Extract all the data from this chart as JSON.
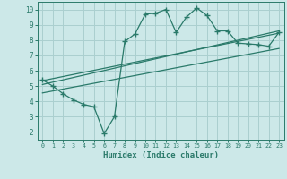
{
  "zigzag_x": [
    0,
    1,
    2,
    3,
    4,
    5,
    6,
    7,
    8,
    9,
    10,
    11,
    12,
    13,
    14,
    15,
    16,
    17,
    18,
    19,
    20,
    21,
    22,
    23
  ],
  "zigzag_y": [
    5.4,
    5.0,
    4.5,
    4.1,
    3.8,
    3.65,
    1.9,
    3.0,
    7.9,
    8.4,
    9.7,
    9.75,
    10.0,
    8.5,
    9.5,
    10.1,
    9.6,
    8.6,
    8.6,
    7.8,
    7.75,
    7.7,
    7.6,
    8.5
  ],
  "trend1_x": [
    0,
    23
  ],
  "trend1_y": [
    5.1,
    8.6
  ],
  "trend2_x": [
    0,
    23
  ],
  "trend2_y": [
    4.55,
    7.45
  ],
  "trend3_x": [
    0,
    23
  ],
  "trend3_y": [
    5.35,
    8.45
  ],
  "line_color": "#2a7a6a",
  "bg_color": "#cce8e8",
  "grid_color": "#aacfcf",
  "xlabel": "Humidex (Indice chaleur)",
  "xlim": [
    -0.5,
    23.5
  ],
  "ylim": [
    1.5,
    10.5
  ],
  "xticks": [
    0,
    1,
    2,
    3,
    4,
    5,
    6,
    7,
    8,
    9,
    10,
    11,
    12,
    13,
    14,
    15,
    16,
    17,
    18,
    19,
    20,
    21,
    22,
    23
  ],
  "yticks": [
    2,
    3,
    4,
    5,
    6,
    7,
    8,
    9,
    10
  ]
}
